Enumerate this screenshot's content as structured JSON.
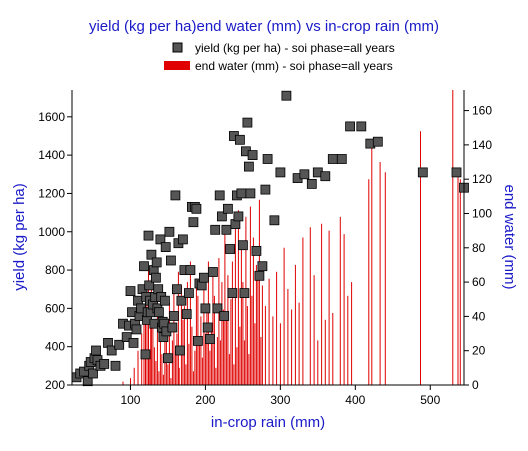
{
  "chart_data": {
    "type": "scatter",
    "title": "yield (kg per ha)end water (mm) vs in-crop rain (mm)",
    "xlabel": "in-crop rain (mm)",
    "ylabel": "yield (kg per ha)",
    "y2label": "end water (mm)",
    "xlim": [
      22,
      545
    ],
    "ylim": [
      200,
      1740
    ],
    "y2lim": [
      0,
      172
    ],
    "xticks": [
      "100",
      "200",
      "300",
      "400",
      "500"
    ],
    "yticks": [
      "200",
      "400",
      "600",
      "800",
      "1000",
      "1200",
      "1400",
      "1600"
    ],
    "y2ticks": [
      "0",
      "20",
      "40",
      "60",
      "80",
      "100",
      "120",
      "140",
      "160"
    ],
    "grid": false,
    "legend_position": "top-center",
    "colors": {
      "yield": "#555555",
      "end_water": "#e00000",
      "axis_title": "#1a1ac8"
    },
    "series": [
      {
        "name": "yield (kg per ha) - soi phase=all years",
        "kind": "scatter",
        "axis": "left",
        "marker": "square",
        "points": [
          [
            28,
            240
          ],
          [
            33,
            260
          ],
          [
            38,
            270
          ],
          [
            43,
            220
          ],
          [
            45,
            300
          ],
          [
            47,
            320
          ],
          [
            50,
            260
          ],
          [
            52,
            340
          ],
          [
            54,
            380
          ],
          [
            56,
            330
          ],
          [
            60,
            300
          ],
          [
            65,
            310
          ],
          [
            70,
            420
          ],
          [
            75,
            380
          ],
          [
            80,
            300
          ],
          [
            85,
            410
          ],
          [
            90,
            520
          ],
          [
            95,
            450
          ],
          [
            98,
            510
          ],
          [
            100,
            690
          ],
          [
            102,
            580
          ],
          [
            104,
            420
          ],
          [
            106,
            520
          ],
          [
            108,
            490
          ],
          [
            110,
            640
          ],
          [
            112,
            560
          ],
          [
            114,
            600
          ],
          [
            116,
            700
          ],
          [
            118,
            820
          ],
          [
            120,
            360
          ],
          [
            121,
            660
          ],
          [
            122,
            540
          ],
          [
            123,
            580
          ],
          [
            124,
            980
          ],
          [
            125,
            720
          ],
          [
            126,
            640
          ],
          [
            127,
            580
          ],
          [
            128,
            880
          ],
          [
            130,
            620
          ],
          [
            131,
            800
          ],
          [
            132,
            520
          ],
          [
            133,
            660
          ],
          [
            134,
            760
          ],
          [
            135,
            840
          ],
          [
            136,
            600
          ],
          [
            137,
            700
          ],
          [
            138,
            580
          ],
          [
            140,
            960
          ],
          [
            141,
            660
          ],
          [
            142,
            500
          ],
          [
            143,
            530
          ],
          [
            144,
            450
          ],
          [
            145,
            520
          ],
          [
            146,
            640
          ],
          [
            147,
            920
          ],
          [
            148,
            480
          ],
          [
            150,
            340
          ],
          [
            152,
            1000
          ],
          [
            154,
            850
          ],
          [
            156,
            500
          ],
          [
            158,
            560
          ],
          [
            160,
            1190
          ],
          [
            162,
            700
          ],
          [
            164,
            940
          ],
          [
            166,
            380
          ],
          [
            168,
            640
          ],
          [
            170,
            960
          ],
          [
            172,
            800
          ],
          [
            175,
            570
          ],
          [
            178,
            680
          ],
          [
            180,
            800
          ],
          [
            182,
            1130
          ],
          [
            184,
            1050
          ],
          [
            186,
            1130
          ],
          [
            188,
            1120
          ],
          [
            190,
            430
          ],
          [
            192,
            730
          ],
          [
            195,
            720
          ],
          [
            198,
            760
          ],
          [
            200,
            600
          ],
          [
            203,
            500
          ],
          [
            206,
            440
          ],
          [
            210,
            790
          ],
          [
            213,
            1010
          ],
          [
            216,
            600
          ],
          [
            219,
            1190
          ],
          [
            222,
            1080
          ],
          [
            225,
            560
          ],
          [
            228,
            1010
          ],
          [
            230,
            1120
          ],
          [
            233,
            910
          ],
          [
            236,
            680
          ],
          [
            238,
            1500
          ],
          [
            240,
            1040
          ],
          [
            242,
            1190
          ],
          [
            244,
            1080
          ],
          [
            246,
            1480
          ],
          [
            248,
            1200
          ],
          [
            250,
            930
          ],
          [
            252,
            680
          ],
          [
            254,
            1420
          ],
          [
            256,
            1570
          ],
          [
            258,
            1340
          ],
          [
            260,
            1200
          ],
          [
            263,
            1400
          ],
          [
            268,
            900
          ],
          [
            272,
            770
          ],
          [
            276,
            820
          ],
          [
            280,
            1220
          ],
          [
            283,
            1380
          ],
          [
            292,
            1060
          ],
          [
            300,
            1310
          ],
          [
            308,
            1710
          ],
          [
            323,
            1280
          ],
          [
            332,
            1300
          ],
          [
            342,
            1250
          ],
          [
            350,
            1310
          ],
          [
            360,
            1290
          ],
          [
            370,
            1380
          ],
          [
            382,
            1380
          ],
          [
            393,
            1550
          ],
          [
            408,
            1550
          ],
          [
            420,
            1460
          ],
          [
            430,
            1470
          ],
          [
            490,
            1310
          ],
          [
            535,
            1310
          ],
          [
            545,
            1230
          ]
        ]
      },
      {
        "name": "end water (mm) - soi phase=all years",
        "kind": "impulse",
        "axis": "right",
        "points": [
          [
            90,
            2
          ],
          [
            100,
            4
          ],
          [
            105,
            10
          ],
          [
            110,
            20
          ],
          [
            115,
            30
          ],
          [
            118,
            45
          ],
          [
            120,
            55
          ],
          [
            122,
            60
          ],
          [
            124,
            68
          ],
          [
            125,
            15
          ],
          [
            127,
            40
          ],
          [
            128,
            62
          ],
          [
            130,
            38
          ],
          [
            132,
            22
          ],
          [
            134,
            14
          ],
          [
            136,
            50
          ],
          [
            138,
            8
          ],
          [
            140,
            42
          ],
          [
            142,
            18
          ],
          [
            144,
            6
          ],
          [
            146,
            35
          ],
          [
            148,
            28
          ],
          [
            150,
            12
          ],
          [
            152,
            48
          ],
          [
            154,
            4
          ],
          [
            156,
            26
          ],
          [
            158,
            55
          ],
          [
            160,
            20
          ],
          [
            162,
            30
          ],
          [
            164,
            66
          ],
          [
            165,
            10
          ],
          [
            168,
            58
          ],
          [
            170,
            38
          ],
          [
            172,
            46
          ],
          [
            174,
            12
          ],
          [
            176,
            60
          ],
          [
            178,
            24
          ],
          [
            180,
            72
          ],
          [
            182,
            34
          ],
          [
            184,
            8
          ],
          [
            186,
            20
          ],
          [
            188,
            62
          ],
          [
            190,
            52
          ],
          [
            192,
            28
          ],
          [
            194,
            40
          ],
          [
            196,
            16
          ],
          [
            198,
            56
          ],
          [
            200,
            30
          ],
          [
            202,
            44
          ],
          [
            204,
            72
          ],
          [
            206,
            20
          ],
          [
            208,
            36
          ],
          [
            210,
            64
          ],
          [
            212,
            52
          ],
          [
            214,
            10
          ],
          [
            216,
            28
          ],
          [
            218,
            74
          ],
          [
            220,
            26
          ],
          [
            222,
            60
          ],
          [
            224,
            44
          ],
          [
            226,
            90
          ],
          [
            228,
            38
          ],
          [
            230,
            64
          ],
          [
            232,
            18
          ],
          [
            234,
            50
          ],
          [
            236,
            72
          ],
          [
            238,
            12
          ],
          [
            240,
            94
          ],
          [
            242,
            22
          ],
          [
            244,
            102
          ],
          [
            246,
            34
          ],
          [
            248,
            80
          ],
          [
            250,
            60
          ],
          [
            252,
            26
          ],
          [
            254,
            98
          ],
          [
            256,
            46
          ],
          [
            258,
            18
          ],
          [
            260,
            104
          ],
          [
            262,
            52
          ],
          [
            264,
            86
          ],
          [
            266,
            36
          ],
          [
            268,
            70
          ],
          [
            270,
            62
          ],
          [
            272,
            108
          ],
          [
            274,
            28
          ],
          [
            276,
            58
          ],
          [
            280,
            46
          ],
          [
            285,
            62
          ],
          [
            290,
            40
          ],
          [
            295,
            66
          ],
          [
            300,
            36
          ],
          [
            305,
            80
          ],
          [
            310,
            56
          ],
          [
            315,
            44
          ],
          [
            320,
            70
          ],
          [
            325,
            48
          ],
          [
            330,
            86
          ],
          [
            340,
            92
          ],
          [
            345,
            64
          ],
          [
            350,
            26
          ],
          [
            355,
            94
          ],
          [
            360,
            38
          ],
          [
            365,
            90
          ],
          [
            370,
            42
          ],
          [
            380,
            98
          ],
          [
            385,
            88
          ],
          [
            390,
            52
          ],
          [
            395,
            60
          ],
          [
            418,
            120
          ],
          [
            422,
            138
          ],
          [
            433,
            130
          ],
          [
            440,
            124
          ],
          [
            487,
            148
          ],
          [
            530,
            172
          ],
          [
            537,
            124
          ],
          [
            540,
            120
          ]
        ]
      }
    ]
  }
}
